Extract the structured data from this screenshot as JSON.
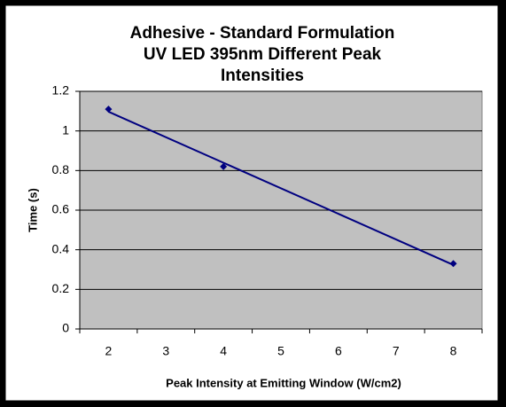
{
  "chart_data": {
    "type": "line",
    "title": [
      "Adhesive - Standard Formulation",
      "UV LED 395nm Different Peak",
      "Intensities"
    ],
    "x_label": "Peak Intensity at Emitting Window (W/cm2)",
    "y_label": "Time (s)",
    "categories": [
      "2",
      "3",
      "4",
      "5",
      "6",
      "7",
      "8"
    ],
    "series": [
      {
        "name": "Time",
        "color": "#000080",
        "values": [
          1.11,
          null,
          0.82,
          null,
          null,
          null,
          0.33
        ]
      }
    ],
    "ylim": [
      0,
      1.2
    ],
    "yticks": [
      0,
      0.2,
      0.4,
      0.6,
      0.8,
      1,
      1.2
    ],
    "grid": true,
    "markers_only": true,
    "trendline": "linear",
    "plot_background": "#c0c0c0"
  }
}
